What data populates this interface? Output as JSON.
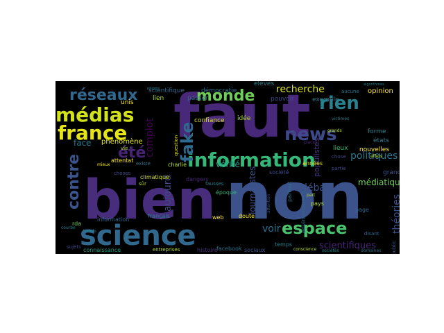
{
  "figure": {
    "background": "#000000",
    "colormap": "viridis",
    "palette": {
      "dark_purple": "#440154",
      "purple": "#482878",
      "indigo": "#3e4a89",
      "blue": "#31688e",
      "teal": "#26828e",
      "green_teal": "#1f9e89",
      "green": "#35b779",
      "light_green": "#6ece58",
      "lime": "#b5de2b",
      "yellow": "#fde725"
    }
  },
  "words": [
    {
      "text": "faut",
      "color": "#482878"
    },
    {
      "text": "bien",
      "color": "#472d7b"
    },
    {
      "text": "non",
      "color": "#3b528b"
    },
    {
      "text": "science",
      "color": "#31688e"
    },
    {
      "text": "information",
      "color": "#35b779"
    },
    {
      "text": "médias",
      "color": "#d2e21b"
    },
    {
      "text": "france",
      "color": "#e5e419"
    },
    {
      "text": "news",
      "color": "#3e4a89"
    },
    {
      "text": "espace",
      "color": "#4ac16d"
    },
    {
      "text": "réseaux",
      "color": "#31688e"
    },
    {
      "text": "rien",
      "color": "#26828e"
    },
    {
      "text": "monde",
      "color": "#6ece58"
    },
    {
      "text": "contre",
      "color": "#3a548c"
    },
    {
      "text": "été",
      "color": "#482475"
    },
    {
      "text": "fake",
      "color": "#30698e"
    },
    {
      "text": "recherche",
      "color": "#d8e219"
    },
    {
      "text": "politiques",
      "color": "#2a788e"
    },
    {
      "text": "débat",
      "color": "#3b528b"
    },
    {
      "text": "complot",
      "color": "#440154"
    },
    {
      "text": "théories",
      "color": "#3b528b"
    },
    {
      "text": "voir",
      "color": "#2c728e"
    },
    {
      "text": "vérité",
      "color": "#1fa088"
    },
    {
      "text": "aujourd",
      "color": "#3e4a89"
    },
    {
      "text": "scientifiques",
      "color": "#482878"
    },
    {
      "text": "médiatique",
      "color": "#6ece58"
    },
    {
      "text": "face",
      "color": "#2a788e"
    },
    {
      "text": "phénomène",
      "color": "#e5e419"
    },
    {
      "text": "journalistes",
      "color": "#3b528b"
    },
    {
      "text": "populistes",
      "color": "#46337e"
    },
    {
      "text": "scientifique",
      "color": "#31688e"
    },
    {
      "text": "démocratie",
      "color": "#2c728e"
    },
    {
      "text": "élèves",
      "color": "#26828e"
    },
    {
      "text": "opinion",
      "color": "#fde725"
    },
    {
      "text": "unis",
      "color": "#fde725"
    },
    {
      "text": "lien",
      "color": "#b5de2b"
    },
    {
      "text": "passer",
      "color": "#31688e"
    },
    {
      "text": "pouvoir",
      "color": "#3e4a89"
    },
    {
      "text": "exemple",
      "color": "#2a788e"
    },
    {
      "text": "idée",
      "color": "#b5de2b"
    },
    {
      "text": "confiance",
      "color": "#d8e219"
    },
    {
      "text": "nouvelles",
      "color": "#fde725"
    },
    {
      "text": "forme",
      "color": "#26828e"
    },
    {
      "text": "états",
      "color": "#2a788e"
    },
    {
      "text": "lieux",
      "color": "#35b779"
    },
    {
      "text": "grand",
      "color": "#3b528b"
    },
    {
      "text": "années",
      "color": "#e5e419"
    },
    {
      "text": "société",
      "color": "#3e4a89"
    },
    {
      "text": "époque",
      "color": "#35b779"
    },
    {
      "text": "dangers",
      "color": "#482878"
    },
    {
      "text": "charlie",
      "color": "#b5de2b"
    },
    {
      "text": "attentat",
      "color": "#fde725"
    },
    {
      "text": "climatique",
      "color": "#d8e219"
    },
    {
      "text": "français",
      "color": "#26828e"
    },
    {
      "text": "web",
      "color": "#fde725"
    },
    {
      "text": "doute",
      "color": "#fde725"
    },
    {
      "text": "temps",
      "color": "#26828e"
    },
    {
      "text": "sociaux",
      "color": "#3b528b"
    },
    {
      "text": "pays",
      "color": "#b5de2b"
    },
    {
      "text": "page",
      "color": "#31688e"
    },
    {
      "text": "information",
      "color": "#31688e"
    },
    {
      "text": "rda",
      "color": "#6ece58"
    },
    {
      "text": "connaissance",
      "color": "#1fa088"
    },
    {
      "text": "entreprises",
      "color": "#b5de2b"
    },
    {
      "text": "histoire",
      "color": "#46337e"
    },
    {
      "text": "facebook",
      "color": "#2c728e"
    },
    {
      "text": "public",
      "color": "#3b528b"
    },
    {
      "text": "choses",
      "color": "#3e4a89"
    },
    {
      "text": "question",
      "color": "#d8e219"
    },
    {
      "text": "vie",
      "color": "#b5de2b"
    },
    {
      "text": "fausses",
      "color": "#26828e"
    },
    {
      "text": "existe",
      "color": "#2c728e"
    },
    {
      "text": "mieux",
      "color": "#fde725"
    },
    {
      "text": "effets",
      "color": "#b5de2b"
    },
    {
      "text": "partout",
      "color": "#2c728e"
    },
    {
      "text": "environnement",
      "color": "#31688e"
    },
    {
      "text": "partie",
      "color": "#3e4a89"
    },
    {
      "text": "victimes",
      "color": "#26828e"
    },
    {
      "text": "aucune",
      "color": "#2a788e"
    },
    {
      "text": "chose",
      "color": "#3e4a89"
    },
    {
      "text": "grands",
      "color": "#b5de2b"
    },
    {
      "text": "sujets",
      "color": "#3e4a89"
    },
    {
      "text": "courbe",
      "color": "#26828e"
    },
    {
      "text": "hebdo",
      "color": "#26828e"
    },
    {
      "text": "conscience",
      "color": "#b5de2b"
    },
    {
      "text": "sociétés",
      "color": "#26828e"
    },
    {
      "text": "domaines",
      "color": "#2c728e"
    },
    {
      "text": "disant",
      "color": "#31688e"
    },
    {
      "text": "algorithmes",
      "color": "#26828e"
    },
    {
      "text": "place",
      "color": "#482878"
    },
    {
      "text": "religion",
      "color": "#26828e"
    },
    {
      "text": "sûr",
      "color": "#b5de2b"
    },
    {
      "text": "attention",
      "color": "#3e4a89"
    },
    {
      "text": "part",
      "color": "#b5de2b"
    }
  ]
}
